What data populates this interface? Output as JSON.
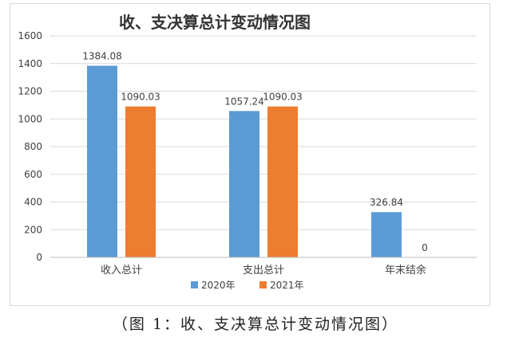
{
  "chart_data": {
    "type": "bar",
    "title": "收、支决算总计变动情况图",
    "categories": [
      "收入总计",
      "支出总计",
      "年末结余"
    ],
    "series": [
      {
        "name": "2020年",
        "values": [
          1384.08,
          1057.24,
          326.84
        ],
        "labels": [
          "1384.08",
          "1057.24",
          "326.84"
        ],
        "color": "#5b9bd5"
      },
      {
        "name": "2021年",
        "values": [
          1090.03,
          1090.03,
          0
        ],
        "labels": [
          "1090.03",
          "1090.03",
          "0"
        ],
        "color": "#ed7d31"
      }
    ],
    "ylim": [
      0,
      1600
    ],
    "yticks": [
      "0",
      "200",
      "400",
      "600",
      "800",
      "1000",
      "1200",
      "1400",
      "1600"
    ],
    "grid": true,
    "legend": "bottom"
  },
  "caption": "（图 1：收、支决算总计变动情况图）"
}
